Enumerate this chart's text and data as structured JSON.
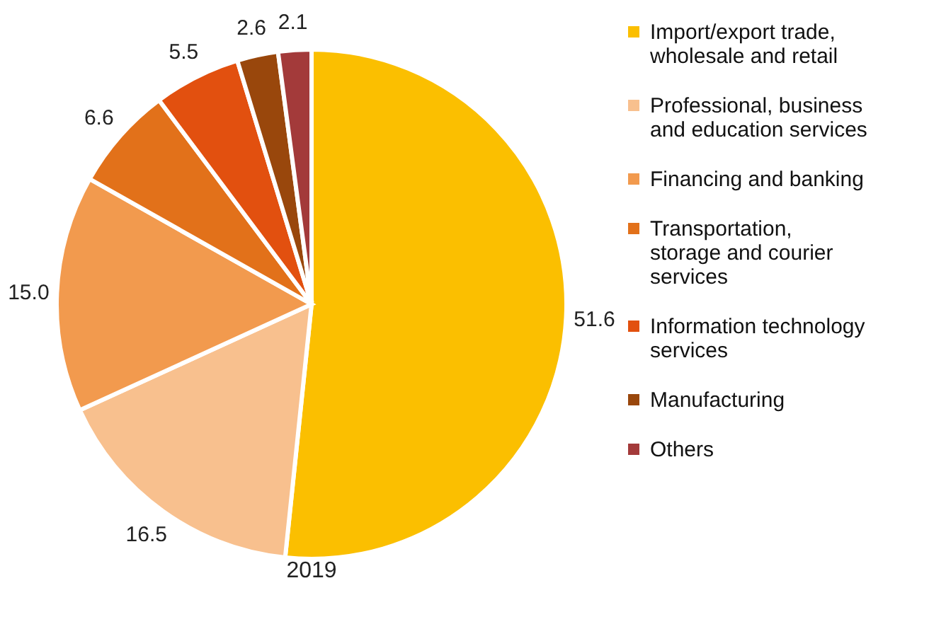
{
  "chart_data": {
    "type": "pie",
    "categories": [
      "Import/export trade, wholesale and retail",
      "Professional, business and education services",
      "Financing and banking",
      "Transportation, storage and courier services",
      "Information technology services",
      "Manufacturing",
      "Others"
    ],
    "values": [
      51.6,
      16.5,
      15.0,
      6.6,
      5.5,
      2.6,
      2.1
    ],
    "value_labels": [
      "51.6",
      "16.5",
      "15.0",
      "6.6",
      "5.5",
      "2.6",
      "2.1"
    ],
    "colors": [
      "#fbbf00",
      "#f8c08e",
      "#f29a4e",
      "#e2711a",
      "#e2500f",
      "#99470c",
      "#a33a3a"
    ],
    "legend": "right",
    "annotations": [
      "2019"
    ]
  }
}
